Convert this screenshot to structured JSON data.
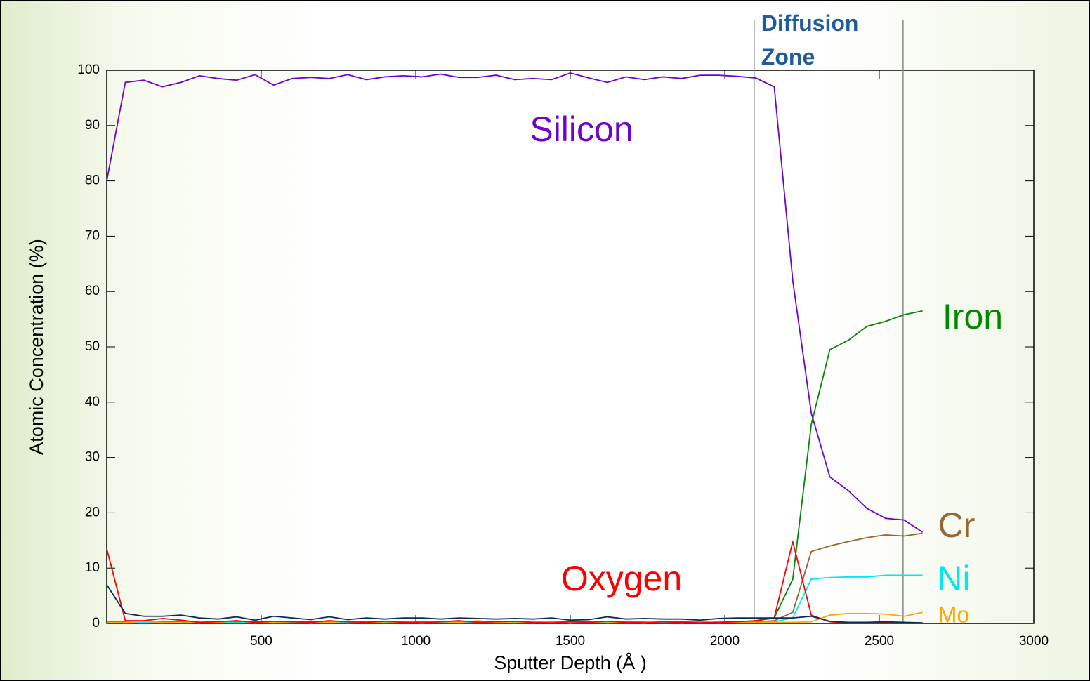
{
  "chart_data": {
    "type": "line",
    "xlabel": "Sputter Depth (Å )",
    "ylabel": "Atomic Concentration (%)",
    "xlim": [
      0,
      3000
    ],
    "ylim": [
      0,
      100
    ],
    "xticks": [
      500,
      1000,
      1500,
      2000,
      2500,
      3000
    ],
    "yticks": [
      0,
      10,
      20,
      30,
      40,
      50,
      60,
      70,
      80,
      90,
      100
    ],
    "grid": false,
    "zone_label": "Diffusion Zone",
    "zone": [
      2095,
      2577
    ],
    "x": [
      0,
      60,
      120,
      180,
      240,
      300,
      360,
      420,
      480,
      540,
      600,
      660,
      720,
      780,
      840,
      900,
      960,
      1020,
      1080,
      1140,
      1200,
      1260,
      1320,
      1380,
      1440,
      1500,
      1560,
      1620,
      1680,
      1740,
      1800,
      1860,
      1920,
      1980,
      2040,
      2100,
      2160,
      2220,
      2280,
      2340,
      2400,
      2460,
      2520,
      2580,
      2640
    ],
    "series": [
      {
        "name": "Silicon",
        "color": "#7000d0",
        "values": [
          80,
          97.8,
          98.2,
          97,
          97.8,
          99,
          98.5,
          98.2,
          99.2,
          97.3,
          98.5,
          98.7,
          98.5,
          99.2,
          98.3,
          98.8,
          99,
          98.8,
          99.3,
          98.7,
          98.7,
          99.1,
          98.3,
          98.5,
          98.3,
          99.5,
          98.6,
          97.8,
          98.8,
          98.3,
          98.8,
          98.5,
          99.1,
          99.1,
          98.9,
          98.6,
          97,
          62,
          38,
          26.5,
          24,
          20.8,
          19,
          18.7,
          16.5
        ]
      },
      {
        "name": "Iron",
        "color": "#008800",
        "values": [
          0.2,
          0.3,
          0.2,
          0.3,
          0.2,
          0.3,
          0.2,
          0.3,
          0.2,
          0.3,
          0.2,
          0.3,
          0.2,
          0.3,
          0.2,
          0.3,
          0.2,
          0.3,
          0.2,
          0.3,
          0.2,
          0.3,
          0.2,
          0.3,
          0.2,
          0.3,
          0.2,
          0.3,
          0.2,
          0.3,
          0.2,
          0.3,
          0.2,
          0.3,
          0.2,
          0.5,
          1,
          8,
          36,
          49.5,
          51.2,
          53.7,
          54.6,
          55.8,
          56.5
        ]
      },
      {
        "name": "Cr",
        "color": "#996633",
        "values": [
          0.3,
          0.2,
          0.3,
          0.2,
          0.3,
          0.2,
          0.3,
          0.2,
          0.3,
          0.2,
          0.3,
          0.2,
          0.3,
          0.2,
          0.3,
          0.2,
          0.3,
          0.2,
          0.3,
          0.2,
          0.3,
          0.2,
          0.3,
          0.2,
          0.3,
          0.2,
          0.3,
          0.2,
          0.3,
          0.2,
          0.3,
          0.2,
          0.3,
          0.2,
          0.3,
          0.3,
          0.5,
          2,
          13,
          14,
          14.8,
          15.5,
          16,
          15.8,
          16.3
        ]
      },
      {
        "name": "Ni",
        "color": "#00e8f0",
        "values": [
          0.2,
          0.1,
          0.2,
          0.1,
          0.2,
          0.1,
          0.2,
          0.1,
          0.2,
          0.1,
          0.2,
          0.1,
          0.2,
          0.1,
          0.2,
          0.1,
          0.2,
          0.1,
          0.2,
          0.1,
          0.2,
          0.1,
          0.2,
          0.1,
          0.2,
          0.1,
          0.2,
          0.1,
          0.2,
          0.1,
          0.2,
          0.1,
          0.2,
          0.1,
          0.2,
          0.2,
          0.3,
          1,
          8,
          8.3,
          8.4,
          8.4,
          8.7,
          8.7,
          8.7
        ]
      },
      {
        "name": "Mo",
        "color": "#ffa500",
        "values": [
          0.1,
          0.2,
          0.4,
          0.2,
          0.1,
          0.3,
          0.2,
          0.5,
          0.1,
          0.2,
          0.3,
          0.1,
          0.2,
          0.4,
          0.1,
          0.3,
          0.2,
          0.1,
          0.3,
          0.2,
          0.5,
          0.2,
          0.1,
          0.3,
          0.2,
          0.1,
          0.2,
          0.3,
          0.1,
          0.2,
          0.4,
          0.1,
          0.2,
          0.3,
          0.1,
          0.2,
          0.2,
          0.2,
          0.3,
          1.5,
          1.8,
          1.8,
          1.7,
          1.3,
          2
        ]
      },
      {
        "name": "Oxygen",
        "color": "#ff0000",
        "values": [
          13.5,
          0.5,
          0.5,
          0.9,
          0.6,
          0.2,
          0.3,
          0.5,
          0.2,
          0.4,
          0.3,
          0.2,
          0.5,
          0.3,
          0.2,
          0.4,
          0.2,
          0.1,
          0.3,
          0.5,
          0.2,
          0.3,
          0.4,
          0.2,
          0.1,
          0.3,
          0.2,
          0.4,
          0.2,
          0.1,
          0.3,
          0.2,
          0.1,
          0.2,
          0.3,
          0.5,
          1,
          14.8,
          1.5,
          0.3,
          0.1,
          0.1,
          0.1,
          0.1,
          0.1
        ]
      },
      {
        "color": "#0a2a5a",
        "values": [
          7,
          1.8,
          1.3,
          1.3,
          1.5,
          1,
          0.8,
          1.2,
          0.6,
          1.3,
          1,
          0.7,
          1.2,
          0.7,
          1,
          0.8,
          1,
          1,
          0.8,
          1,
          0.9,
          0.8,
          0.9,
          0.8,
          1,
          0.6,
          0.7,
          1.2,
          0.8,
          0.9,
          0.8,
          0.8,
          0.6,
          0.9,
          1,
          1,
          1,
          1,
          1.3,
          0.4,
          0.2,
          0.2,
          0.3,
          0.2,
          0.1
        ]
      }
    ]
  }
}
